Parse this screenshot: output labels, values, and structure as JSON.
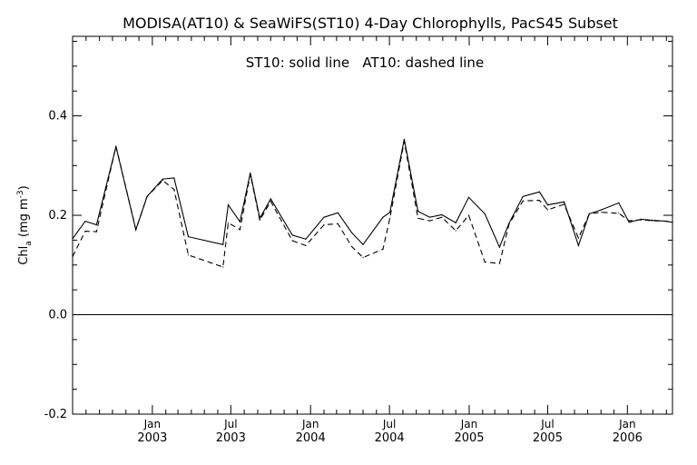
{
  "chart_data": {
    "type": "line",
    "title": "MODISA(AT10) & SeaWiFS(ST10) 4-Day Chlorophylls, PacS45 Subset",
    "annotation": "ST10: solid line   AT10: dashed line",
    "ylabel": {
      "main": "Chl",
      "sub": "a",
      "unit_open": " (mg m",
      "unit_sup": "-3",
      "unit_close": ")"
    },
    "ylim": [
      -0.2,
      0.56
    ],
    "xlim": [
      "2002-07-01",
      "2006-04-15"
    ],
    "grid": false,
    "zero_line": true,
    "y_ticks": [
      {
        "value": -0.2,
        "label": "-0.2"
      },
      {
        "value": 0.0,
        "label": "0.0"
      },
      {
        "value": 0.2,
        "label": "0.2"
      },
      {
        "value": 0.4,
        "label": "0.4"
      }
    ],
    "x_ticks": [
      {
        "date": "2003-01-01",
        "month": "Jan",
        "year": "2003"
      },
      {
        "date": "2003-07-01",
        "month": "Jul",
        "year": "2003"
      },
      {
        "date": "2004-01-01",
        "month": "Jan",
        "year": "2004"
      },
      {
        "date": "2004-07-01",
        "month": "Jul",
        "year": "2004"
      },
      {
        "date": "2005-01-01",
        "month": "Jan",
        "year": "2005"
      },
      {
        "date": "2005-07-01",
        "month": "Jul",
        "year": "2005"
      },
      {
        "date": "2006-01-01",
        "month": "Jan",
        "year": "2006"
      }
    ],
    "x": [
      "2002-07-01",
      "2002-07-30",
      "2002-08-25",
      "2002-10-09",
      "2002-11-24",
      "2002-12-20",
      "2003-01-25",
      "2003-02-20",
      "2003-03-25",
      "2003-06-13",
      "2003-06-25",
      "2003-07-22",
      "2003-08-15",
      "2003-09-06",
      "2003-10-01",
      "2003-11-20",
      "2003-12-21",
      "2004-02-01",
      "2004-03-04",
      "2004-04-05",
      "2004-05-01",
      "2004-06-16",
      "2004-07-02",
      "2004-08-04",
      "2004-09-05",
      "2004-10-02",
      "2004-10-30",
      "2004-12-01",
      "2004-12-31",
      "2005-02-06",
      "2005-03-12",
      "2005-04-03",
      "2005-05-05",
      "2005-06-12",
      "2005-07-01",
      "2005-08-08",
      "2005-09-10",
      "2005-10-05",
      "2005-11-02",
      "2005-12-12",
      "2006-01-05",
      "2006-02-02",
      "2006-02-27",
      "2006-03-31",
      "2006-04-15"
    ],
    "series": [
      {
        "name": "ST10",
        "style": "solid",
        "color": "#000000",
        "values": [
          0.153,
          0.188,
          0.181,
          0.338,
          0.171,
          0.238,
          0.273,
          0.275,
          0.157,
          0.141,
          0.221,
          0.187,
          0.285,
          0.194,
          0.233,
          0.16,
          0.152,
          0.196,
          0.205,
          0.165,
          0.141,
          0.196,
          0.206,
          0.353,
          0.208,
          0.196,
          0.201,
          0.185,
          0.236,
          0.203,
          0.136,
          0.184,
          0.238,
          0.247,
          0.221,
          0.227,
          0.139,
          0.203,
          0.211,
          0.225,
          0.186,
          0.192,
          0.19,
          0.188,
          0.186
        ]
      },
      {
        "name": "AT10",
        "style": "dashed",
        "color": "#000000",
        "values": [
          0.117,
          0.168,
          0.167,
          0.339,
          0.171,
          0.238,
          0.27,
          0.252,
          0.12,
          0.096,
          0.185,
          0.171,
          0.283,
          0.19,
          0.228,
          0.149,
          0.139,
          0.181,
          0.183,
          0.137,
          0.115,
          0.132,
          0.194,
          0.349,
          0.194,
          0.189,
          0.196,
          0.169,
          0.2,
          0.106,
          0.103,
          0.182,
          0.229,
          0.23,
          0.211,
          0.222,
          0.154,
          0.203,
          0.206,
          0.204,
          0.189,
          0.191,
          0.189,
          0.188,
          0.185
        ]
      }
    ]
  }
}
